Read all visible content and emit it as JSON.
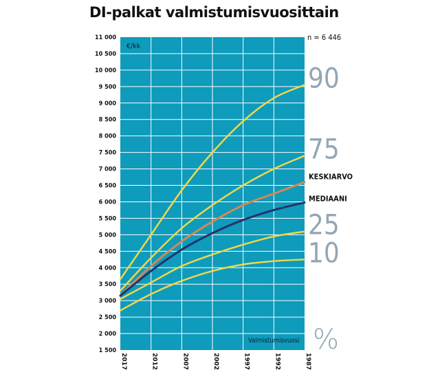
{
  "title": "DI-palkat valmistumisvuosittain",
  "sample_size": "n = 6 446",
  "unit_label": "€/kk",
  "xlabel": "Valmistumisvuosi",
  "percent_label": "%",
  "colors": {
    "plot_bg": "#0f9bbb",
    "grid": "#ffffff",
    "percentile_line": "#f0d84a",
    "mean_line": "#d28a52",
    "median_line": "#23336a",
    "percentile_text": "#93a6b4"
  },
  "chart_data": {
    "type": "line",
    "title": "DI-palkat valmistumisvuosittain",
    "xlabel": "Valmistumisvuosi",
    "ylabel": "€/kk",
    "x": [
      2017,
      2012,
      2007,
      2002,
      1997,
      1992,
      1987
    ],
    "x_tick_labels": [
      "2017",
      "2012",
      "2007",
      "2002",
      "1997",
      "1992",
      "1987"
    ],
    "xlim": [
      2017,
      1987
    ],
    "ylim": [
      1500,
      11000
    ],
    "y_ticks": [
      1500,
      2000,
      2500,
      3000,
      3500,
      4000,
      4500,
      5000,
      5500,
      6000,
      6500,
      7000,
      7500,
      8000,
      8500,
      9000,
      9500,
      10000,
      10500,
      11000
    ],
    "y_tick_labels": [
      "1 500",
      "2 000",
      "2 500",
      "3 000",
      "3 500",
      "4 000",
      "4 500",
      "5 000",
      "5 500",
      "6 000",
      "6 500",
      "7 000",
      "7 500",
      "8 000",
      "8 500",
      "9 000",
      "9 500",
      "10 000",
      "10 500",
      "11 000"
    ],
    "grid": true,
    "series": [
      {
        "name": "90",
        "role": "percentile",
        "values": [
          3650,
          5000,
          6350,
          7500,
          8450,
          9150,
          9550
        ]
      },
      {
        "name": "75",
        "role": "percentile",
        "values": [
          3300,
          4300,
          5200,
          5900,
          6500,
          7000,
          7400
        ]
      },
      {
        "name": "KESKIARVO",
        "role": "mean",
        "values": [
          3150,
          4050,
          4800,
          5400,
          5900,
          6250,
          6600
        ]
      },
      {
        "name": "MEDIAANI",
        "role": "median",
        "values": [
          3150,
          3900,
          4550,
          5050,
          5450,
          5750,
          5980
        ]
      },
      {
        "name": "25",
        "role": "percentile",
        "values": [
          3050,
          3550,
          4050,
          4400,
          4700,
          4950,
          5100
        ]
      },
      {
        "name": "10",
        "role": "percentile",
        "values": [
          2700,
          3200,
          3600,
          3900,
          4100,
          4200,
          4250
        ]
      }
    ]
  }
}
